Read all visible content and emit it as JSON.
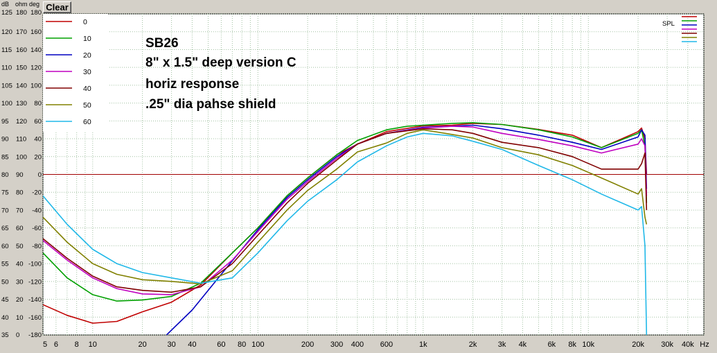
{
  "toolbar": {
    "clear_label": "Clear"
  },
  "axis_headers": {
    "db": "dB",
    "ohm": "ohm",
    "deg": "deg"
  },
  "spl_label": "SPL",
  "annotation": [
    "SB26",
    "8\" x 1.5\" deep version C",
    "horiz response",
    ".25\" dia pahse shield"
  ],
  "colors": {
    "plot_bg": "#ffffff",
    "window_bg": "#d4d0c8",
    "grid": "#a0c0a0",
    "zero_line": "#a00000"
  },
  "chart_data": {
    "type": "line",
    "x_scale": "log",
    "xlim": [
      5,
      50000
    ],
    "ylim": [
      35,
      125
    ],
    "x_ticks": [
      {
        "v": 5,
        "l": "5"
      },
      {
        "v": 6,
        "l": "6"
      },
      {
        "v": 8,
        "l": "8"
      },
      {
        "v": 10,
        "l": "10"
      },
      {
        "v": 20,
        "l": "20"
      },
      {
        "v": 30,
        "l": "30"
      },
      {
        "v": 40,
        "l": "40"
      },
      {
        "v": 60,
        "l": "60"
      },
      {
        "v": 80,
        "l": "80"
      },
      {
        "v": 100,
        "l": "100"
      },
      {
        "v": 200,
        "l": "200"
      },
      {
        "v": 300,
        "l": "300"
      },
      {
        "v": 400,
        "l": "400"
      },
      {
        "v": 600,
        "l": "600"
      },
      {
        "v": 1000,
        "l": "1k"
      },
      {
        "v": 2000,
        "l": "2k"
      },
      {
        "v": 3000,
        "l": "3k"
      },
      {
        "v": 4000,
        "l": "4k"
      },
      {
        "v": 6000,
        "l": "6k"
      },
      {
        "v": 8000,
        "l": "8k"
      },
      {
        "v": 10000,
        "l": "10k"
      },
      {
        "v": 20000,
        "l": "20k"
      },
      {
        "v": 30000,
        "l": "30k"
      },
      {
        "v": 40000,
        "l": "40k"
      },
      {
        "v": 50000,
        "l": "Hz"
      }
    ],
    "y_ticks": [
      {
        "db": "125",
        "ohm": "180",
        "deg": "180"
      },
      {
        "db": "120",
        "ohm": "170",
        "deg": "160"
      },
      {
        "db": "115",
        "ohm": "160",
        "deg": "140"
      },
      {
        "db": "110",
        "ohm": "150",
        "deg": "120"
      },
      {
        "db": "105",
        "ohm": "140",
        "deg": "100"
      },
      {
        "db": "100",
        "ohm": "130",
        "deg": "80"
      },
      {
        "db": "95",
        "ohm": "120",
        "deg": "60"
      },
      {
        "db": "90",
        "ohm": "110",
        "deg": "40"
      },
      {
        "db": "85",
        "ohm": "100",
        "deg": "20"
      },
      {
        "db": "80",
        "ohm": "90",
        "deg": "0"
      },
      {
        "db": "75",
        "ohm": "80",
        "deg": "-20"
      },
      {
        "db": "70",
        "ohm": "70",
        "deg": "-40"
      },
      {
        "db": "65",
        "ohm": "60",
        "deg": "-60"
      },
      {
        "db": "60",
        "ohm": "50",
        "deg": "-80"
      },
      {
        "db": "55",
        "ohm": "40",
        "deg": "-100"
      },
      {
        "db": "50",
        "ohm": "30",
        "deg": "-120"
      },
      {
        "db": "45",
        "ohm": "20",
        "deg": "-140"
      },
      {
        "db": "40",
        "ohm": "10",
        "deg": "-160"
      },
      {
        "db": "35",
        "ohm": "0",
        "deg": "-180"
      }
    ],
    "zero_line_db": 80,
    "grid": true,
    "legend_position": "top-left",
    "series": [
      {
        "name": "0",
        "color": "#c00000",
        "x": [
          5,
          7,
          10,
          14,
          20,
          30,
          45,
          70,
          100,
          150,
          200,
          300,
          400,
          600,
          1000,
          1500,
          2000,
          3000,
          5000,
          8000,
          12000,
          20000,
          21000,
          22000,
          22500
        ],
        "y": [
          43.5,
          40.5,
          38.3,
          38.8,
          41.5,
          44.2,
          49,
          58,
          65,
          74,
          79,
          85.5,
          88.5,
          92,
          93.6,
          93.8,
          94.3,
          94,
          92.6,
          91,
          87.5,
          92,
          93,
          90,
          80
        ]
      },
      {
        "name": "10",
        "color": "#00a000",
        "x": [
          5,
          7,
          10,
          14,
          20,
          30,
          45,
          70,
          100,
          150,
          200,
          300,
          400,
          600,
          800,
          1000,
          1500,
          2000,
          3000,
          5000,
          8000,
          12000,
          20000,
          21000,
          22000,
          22500
        ],
        "y": [
          58,
          51,
          46.3,
          44.5,
          44.8,
          45.8,
          49.5,
          58,
          65,
          74,
          79,
          85.5,
          89.5,
          92.5,
          93.5,
          93.8,
          94.3,
          94.5,
          94,
          92.5,
          90.5,
          87.5,
          91.5,
          92.5,
          88,
          72
        ]
      },
      {
        "name": "20",
        "color": "#0000c0",
        "x": [
          28,
          40,
          60,
          100,
          150,
          200,
          300,
          400,
          600,
          1000,
          1500,
          2000,
          3000,
          5000,
          8000,
          12000,
          20000,
          21000,
          22000,
          22500
        ],
        "y": [
          35,
          42,
          52,
          64.5,
          73.5,
          78.5,
          85,
          88.5,
          91.5,
          93.2,
          93.5,
          93.8,
          92.8,
          91,
          89,
          87,
          90.5,
          92.5,
          91,
          76
        ]
      },
      {
        "name": "30",
        "color": "#c000c0",
        "x": [
          5,
          7,
          10,
          14,
          20,
          30,
          45,
          70,
          100,
          150,
          200,
          300,
          400,
          600,
          1000,
          1500,
          2000,
          3000,
          5000,
          8000,
          12000,
          20000,
          21000,
          22000,
          22500
        ],
        "y": [
          61.5,
          56,
          51,
          48,
          46.5,
          46.3,
          48.5,
          56,
          64,
          73,
          78,
          84.5,
          88.5,
          91.5,
          93,
          93.5,
          93.3,
          91.5,
          89.8,
          88,
          86,
          88.5,
          90,
          88,
          74
        ]
      },
      {
        "name": "40",
        "color": "#800000",
        "x": [
          5,
          7,
          10,
          14,
          20,
          30,
          45,
          70,
          100,
          150,
          200,
          300,
          400,
          600,
          1000,
          1500,
          2000,
          3000,
          5000,
          8000,
          12000,
          20000,
          21000,
          22000,
          22500
        ],
        "y": [
          62,
          56.5,
          51.5,
          48.5,
          47.5,
          47,
          48.5,
          55,
          63,
          72,
          77.5,
          84,
          88.5,
          91.5,
          92.8,
          92.5,
          91.5,
          89,
          87.5,
          85,
          81.5,
          81.5,
          83,
          86,
          70
        ]
      },
      {
        "name": "50",
        "color": "#808000",
        "x": [
          5,
          7,
          10,
          14,
          20,
          30,
          45,
          70,
          100,
          150,
          200,
          300,
          400,
          600,
          800,
          1000,
          1500,
          2000,
          3000,
          5000,
          8000,
          12000,
          20000,
          21000,
          22000,
          22500
        ],
        "y": [
          68,
          61,
          55,
          52,
          50.5,
          50,
          49.3,
          53,
          61,
          70,
          75.5,
          81.5,
          86.3,
          88.8,
          91.5,
          92.5,
          91.2,
          90.2,
          87.5,
          85.5,
          82.5,
          79,
          74.5,
          76,
          68,
          66
        ]
      },
      {
        "name": "60",
        "color": "#20b8e8",
        "x": [
          5,
          7,
          10,
          14,
          20,
          30,
          45,
          70,
          100,
          150,
          200,
          300,
          400,
          600,
          800,
          1000,
          1500,
          2000,
          3000,
          5000,
          8000,
          12000,
          20000,
          21000,
          22000,
          22500
        ],
        "y": [
          74,
          66,
          59,
          55,
          52.5,
          51,
          49.5,
          51,
          58,
          67,
          72.5,
          78.5,
          83.5,
          88,
          90.5,
          91.5,
          90.8,
          89.3,
          87,
          82.5,
          78.5,
          74.5,
          70,
          71,
          60,
          35
        ]
      }
    ]
  }
}
